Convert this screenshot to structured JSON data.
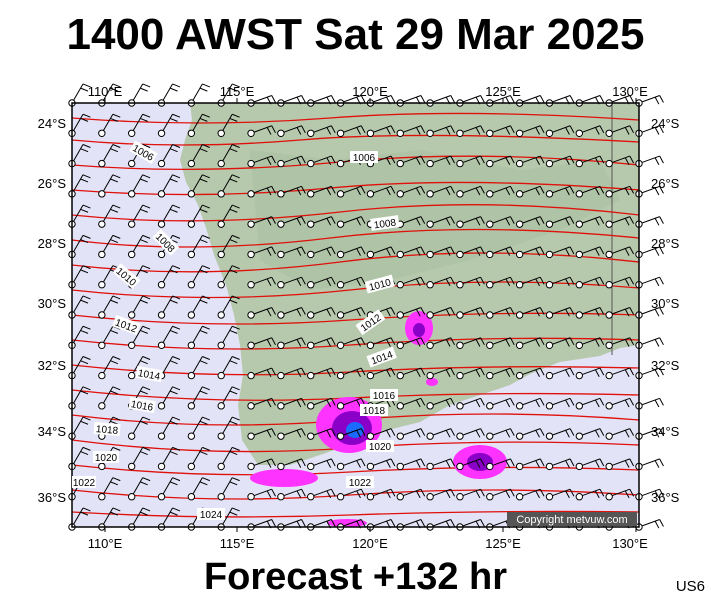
{
  "header": {
    "title": "1400 AWST Sat 29 Mar 2025"
  },
  "footer": {
    "forecast": "Forecast +132 hr",
    "code": "US6"
  },
  "map": {
    "lon_labels": [
      "110°E",
      "115°E",
      "120°E",
      "125°E",
      "130°E"
    ],
    "lat_labels": [
      "24°S",
      "26°S",
      "28°S",
      "30°S",
      "32°S",
      "34°S",
      "36°S"
    ],
    "isobars": [
      "1006",
      "1008",
      "1008",
      "1010",
      "1010",
      "1012",
      "1012",
      "1014",
      "1014",
      "1016",
      "1016",
      "1018",
      "1018",
      "1020",
      "1020",
      "1022",
      "1022",
      "1024"
    ],
    "copyright": "Copyright metvuw.com",
    "colors": {
      "ocean": "#e3e3f7",
      "land": "#b6c9ad",
      "isobar": "#e0100a",
      "rain_light": "#ff33ff",
      "rain_heavy": "#8b00c9",
      "rain_core": "#1a6bff"
    }
  }
}
